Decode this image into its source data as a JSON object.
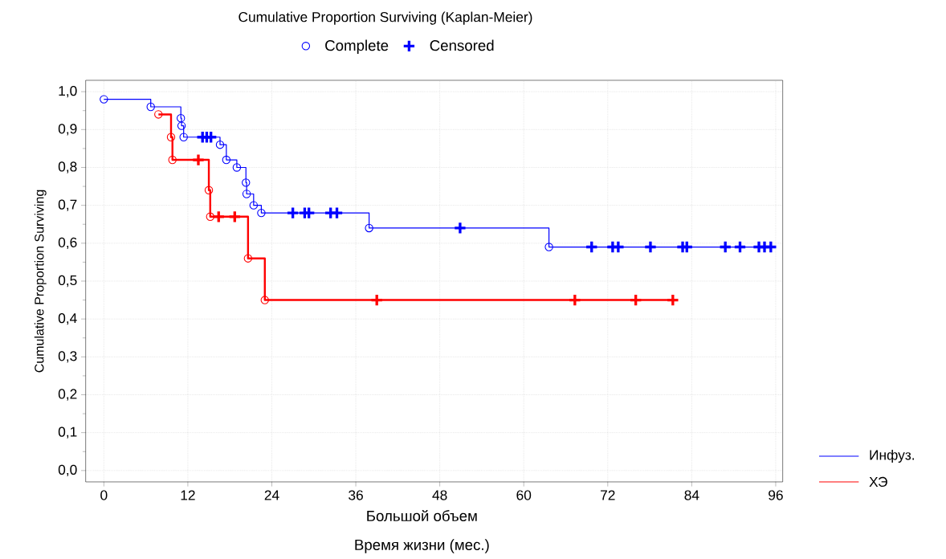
{
  "chart_data": {
    "type": "step",
    "title": "Cumulative Proportion Surviving (Kaplan-Meier)",
    "xlabel": "Время жизни (мес.)",
    "ylabel": "Cumulative Proportion Surviving",
    "annotations": [
      "Большой объем"
    ],
    "series": [
      {
        "name": "Инфуз.",
        "color": "#0000ff",
        "x": [
          0,
          6.7,
          11.0,
          11.1,
          11.4,
          16.6,
          17.5,
          19.0,
          20.3,
          20.4,
          21.4,
          22.5,
          37.9,
          63.6,
          95.3
        ],
        "values": [
          0.98,
          0.96,
          0.93,
          0.91,
          0.88,
          0.86,
          0.82,
          0.8,
          0.76,
          0.73,
          0.7,
          0.68,
          0.64,
          0.59,
          0.59
        ]
      },
      {
        "name": "ХЭ",
        "color": "#ff0000",
        "x": [
          7.8,
          9.6,
          9.8,
          15.0,
          15.2,
          20.6,
          23.0,
          81.3
        ],
        "values": [
          0.94,
          0.88,
          0.82,
          0.74,
          0.67,
          0.56,
          0.45,
          0.45
        ]
      },
      {
        "name": "Complete",
        "type": "scatter",
        "marker": "circle",
        "color": "#0000ff",
        "x": [
          0,
          6.7,
          11.0,
          11.1,
          11.4,
          16.6,
          17.5,
          19.0,
          20.3,
          20.4,
          21.4,
          22.5,
          37.9,
          63.6,
          7.8,
          9.6,
          9.8,
          15.0,
          15.2,
          20.6,
          23.0
        ],
        "values": [
          0.98,
          0.96,
          0.93,
          0.91,
          0.88,
          0.86,
          0.82,
          0.8,
          0.76,
          0.73,
          0.7,
          0.68,
          0.64,
          0.59,
          0.94,
          0.88,
          0.82,
          0.74,
          0.67,
          0.56,
          0.45
        ],
        "colors": [
          "#0000ff",
          "#0000ff",
          "#0000ff",
          "#0000ff",
          "#0000ff",
          "#0000ff",
          "#0000ff",
          "#0000ff",
          "#0000ff",
          "#0000ff",
          "#0000ff",
          "#0000ff",
          "#0000ff",
          "#0000ff",
          "#ff0000",
          "#ff0000",
          "#ff0000",
          "#ff0000",
          "#ff0000",
          "#ff0000",
          "#ff0000"
        ]
      },
      {
        "name": "Censored",
        "type": "scatter",
        "marker": "cross",
        "color": "#0000ff",
        "x": [
          14.1,
          14.7,
          15.3,
          27.0,
          28.7,
          29.3,
          32.4,
          33.3,
          50.9,
          69.7,
          72.7,
          73.5,
          78.1,
          82.7,
          83.3,
          88.8,
          90.9,
          93.6,
          94.4,
          95.3,
          13.5,
          16.4,
          18.7,
          39.0,
          67.3,
          76.0,
          81.3
        ],
        "values": [
          0.88,
          0.88,
          0.88,
          0.68,
          0.68,
          0.68,
          0.68,
          0.68,
          0.64,
          0.59,
          0.59,
          0.59,
          0.59,
          0.59,
          0.59,
          0.59,
          0.59,
          0.59,
          0.59,
          0.59,
          0.82,
          0.67,
          0.67,
          0.45,
          0.45,
          0.45,
          0.45
        ],
        "colors": [
          "#0000ff",
          "#0000ff",
          "#0000ff",
          "#0000ff",
          "#0000ff",
          "#0000ff",
          "#0000ff",
          "#0000ff",
          "#0000ff",
          "#0000ff",
          "#0000ff",
          "#0000ff",
          "#0000ff",
          "#0000ff",
          "#0000ff",
          "#0000ff",
          "#0000ff",
          "#0000ff",
          "#0000ff",
          "#0000ff",
          "#ff0000",
          "#ff0000",
          "#ff0000",
          "#ff0000",
          "#ff0000",
          "#ff0000",
          "#ff0000"
        ]
      }
    ],
    "xlim": [
      -2.6,
      97
    ],
    "ylim": [
      -0.03,
      1.03
    ],
    "xticks": [
      0,
      12,
      24,
      36,
      48,
      60,
      72,
      84,
      96
    ],
    "yticks": [
      {
        "value": 0,
        "label": "0,0"
      },
      {
        "value": 0.1,
        "label": "0,1"
      },
      {
        "value": 0.2,
        "label": "0,2"
      },
      {
        "value": 0.3,
        "label": "0,3"
      },
      {
        "value": 0.4,
        "label": "0,4"
      },
      {
        "value": 0.5,
        "label": "0,5"
      },
      {
        "value": 0.6,
        "label": "0,6"
      },
      {
        "value": 0.7,
        "label": "0,7"
      },
      {
        "value": 0.8,
        "label": "0,8"
      },
      {
        "value": 0.9,
        "label": "0,9"
      },
      {
        "value": 1.0,
        "label": "1,0"
      }
    ],
    "grid": true,
    "legend": "top"
  }
}
